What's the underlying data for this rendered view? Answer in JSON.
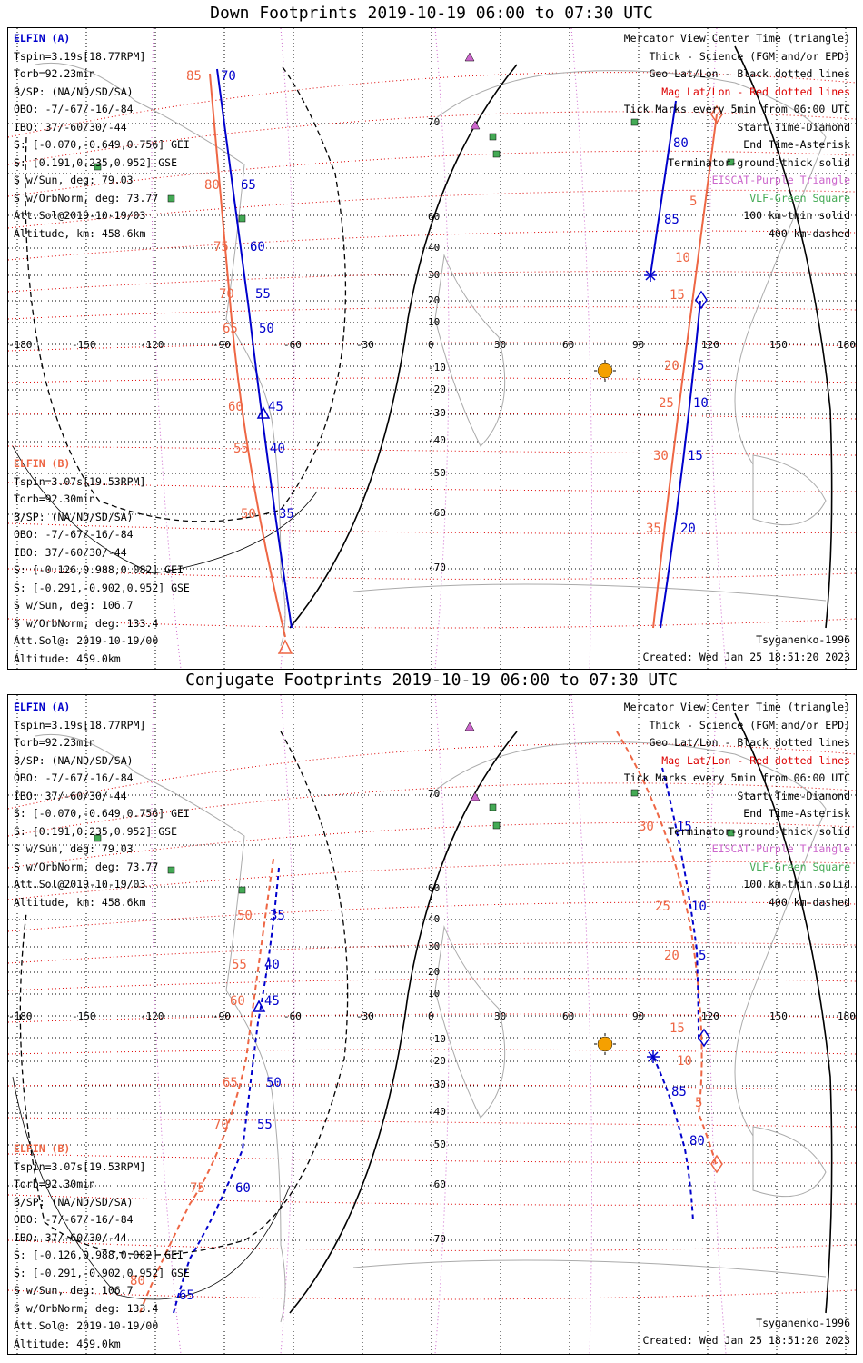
{
  "panels": [
    {
      "title": "Down Footprints 2019-10-19 06:00 to 07:30 UTC",
      "elfin_a": {
        "name": "ELFIN (A)",
        "lines": [
          "Tspin=3.19s[18.77RPM]",
          "Torb=92.23min",
          "B/SP: (NA/ND/SD/SA)",
          "OBO: -7/-67/-16/-84",
          "IBO: 37/-60/30/-44",
          "S: [-0.070,-0.649,0.756] GEI",
          "S: [0.191,0.235,0.952] GSE",
          "S w/Sun, deg: 79.03",
          "S w/OrbNorm, deg: 73.77",
          "Att.Sol@2019-10-19/03",
          "Altitude, km: 458.6km"
        ]
      },
      "elfin_b": {
        "name": "ELFIN (B)",
        "lines": [
          "Tspin=3.07s[19.53RPM]",
          "Torb=92.30min",
          "B/SP: (NA/ND/SD/SA)",
          "OBO: -7/-67/-16/-84",
          "IBO: 37/-60/30/-44",
          "S: [-0.126,0.988,0.082] GEI",
          "S: [-0.291,-0.902,0.952] GSE",
          "S w/Sun, deg: 106.7",
          "S w/OrbNorm, deg: 133.4",
          "Att.Sol@: 2019-10-19/00",
          "Altitude: 459.0km"
        ]
      },
      "legend": [
        {
          "text": "Mercator View Center Time (triangle)",
          "color": "#000000"
        },
        {
          "text": "Thick - Science (FGM and/or EPD)",
          "color": "#000000"
        },
        {
          "text": "Geo Lat/Lon - Black dotted lines",
          "color": "#000000"
        },
        {
          "text": "Mag Lat/Lon - Red dotted lines",
          "color": "#dd0000"
        },
        {
          "text": "Tick Marks every 5min from 06:00 UTC",
          "color": "#000000"
        },
        {
          "text": "Start Time-Diamond",
          "color": "#000000"
        },
        {
          "text": "End Time-Asterisk",
          "color": "#000000"
        },
        {
          "text": "Terminator-ground-thick solid",
          "color": "#000000"
        },
        {
          "text": "EISCAT-Purple Triangle",
          "color": "#cc66cc"
        },
        {
          "text": "VLF-Green Square",
          "color": "#44aa55"
        },
        {
          "text": "100 km-thin solid",
          "color": "#000000"
        },
        {
          "text": "400 km-dashed",
          "color": "#000000"
        }
      ],
      "model": "Tsyganenko-1996",
      "created": "Created: Wed Jan 25 18:51:20 2023",
      "track_a_labels": [
        "70",
        "65",
        "60",
        "55",
        "50",
        "45",
        "40",
        "35",
        "80",
        "85",
        "5",
        "10",
        "15",
        "20"
      ],
      "track_b_labels": [
        "85",
        "80",
        "75",
        "70",
        "65",
        "60",
        "55",
        "50",
        "5",
        "10",
        "15",
        "20",
        "25",
        "30",
        "35"
      ]
    },
    {
      "title": "Conjugate Footprints 2019-10-19 06:00 to 07:30 UTC",
      "elfin_a": {
        "name": "ELFIN (A)",
        "lines": [
          "Tspin=3.19s[18.77RPM]",
          "Torb=92.23min",
          "B/SP: (NA/ND/SD/SA)",
          "OBO: -7/-67/-16/-84",
          "IBO: 37/-60/30/-44",
          "S: [-0.070,-0.649,0.756] GEI",
          "S: [0.191,0.235,0.952] GSE",
          "S w/Sun, deg: 79.03",
          "S w/OrbNorm, deg: 73.77",
          "Att.Sol@2019-10-19/03",
          "Altitude, km: 458.6km"
        ]
      },
      "elfin_b": {
        "name": "ELFIN (B)",
        "lines": [
          "Tspin=3.07s[19.53RPM]",
          "Torb=92.30min",
          "B/SP: (NA/ND/SD/SA)",
          "OBO: -7/-67/-16/-84",
          "IBO: 37/-60/30/-44",
          "S: [-0.126,0.988,0.082] GEI",
          "S: [-0.291,-0.902,0.952] GSE",
          "S w/Sun, deg: 106.7",
          "S w/OrbNorm, deg: 133.4",
          "Att.Sol@: 2019-10-19/00",
          "Altitude: 459.0km"
        ]
      },
      "legend": [
        {
          "text": "Mercator View Center Time (triangle)",
          "color": "#000000"
        },
        {
          "text": "Thick - Science (FGM and/or EPD)",
          "color": "#000000"
        },
        {
          "text": "Geo Lat/Lon - Black dotted lines",
          "color": "#000000"
        },
        {
          "text": "Mag Lat/Lon - Red dotted lines",
          "color": "#dd0000"
        },
        {
          "text": "Tick Marks every 5min from 06:00 UTC",
          "color": "#000000"
        },
        {
          "text": "Start Time-Diamond",
          "color": "#000000"
        },
        {
          "text": "End Time-Asterisk",
          "color": "#000000"
        },
        {
          "text": "Terminator-ground-thick solid",
          "color": "#000000"
        },
        {
          "text": "EISCAT-Purple Triangle",
          "color": "#cc66cc"
        },
        {
          "text": "VLF-Green Square",
          "color": "#44aa55"
        },
        {
          "text": "100 km-thin solid",
          "color": "#000000"
        },
        {
          "text": "400 km-dashed",
          "color": "#000000"
        }
      ],
      "model": "Tsyganenko-1996",
      "created": "Created: Wed Jan 25 18:51:20 2023"
    }
  ],
  "lon_ticks": [
    "-180",
    "-150",
    "-120",
    "-90",
    "-60",
    "-30",
    "0",
    "30",
    "60",
    "90",
    "120",
    "150",
    "180"
  ],
  "lat_ticks": [
    "70",
    "60",
    "50",
    "40",
    "30",
    "20",
    "10",
    "0",
    "-10",
    "-20",
    "-30",
    "-40",
    "-50",
    "-60",
    "-70"
  ],
  "colors": {
    "elfin_a": "#0000cc",
    "elfin_b": "#ee6644",
    "mag_grid": "#dd0000",
    "geo_grid": "#000000",
    "eiscat": "#cc66cc",
    "vlf": "#44aa55",
    "sun": "#f5a000"
  }
}
